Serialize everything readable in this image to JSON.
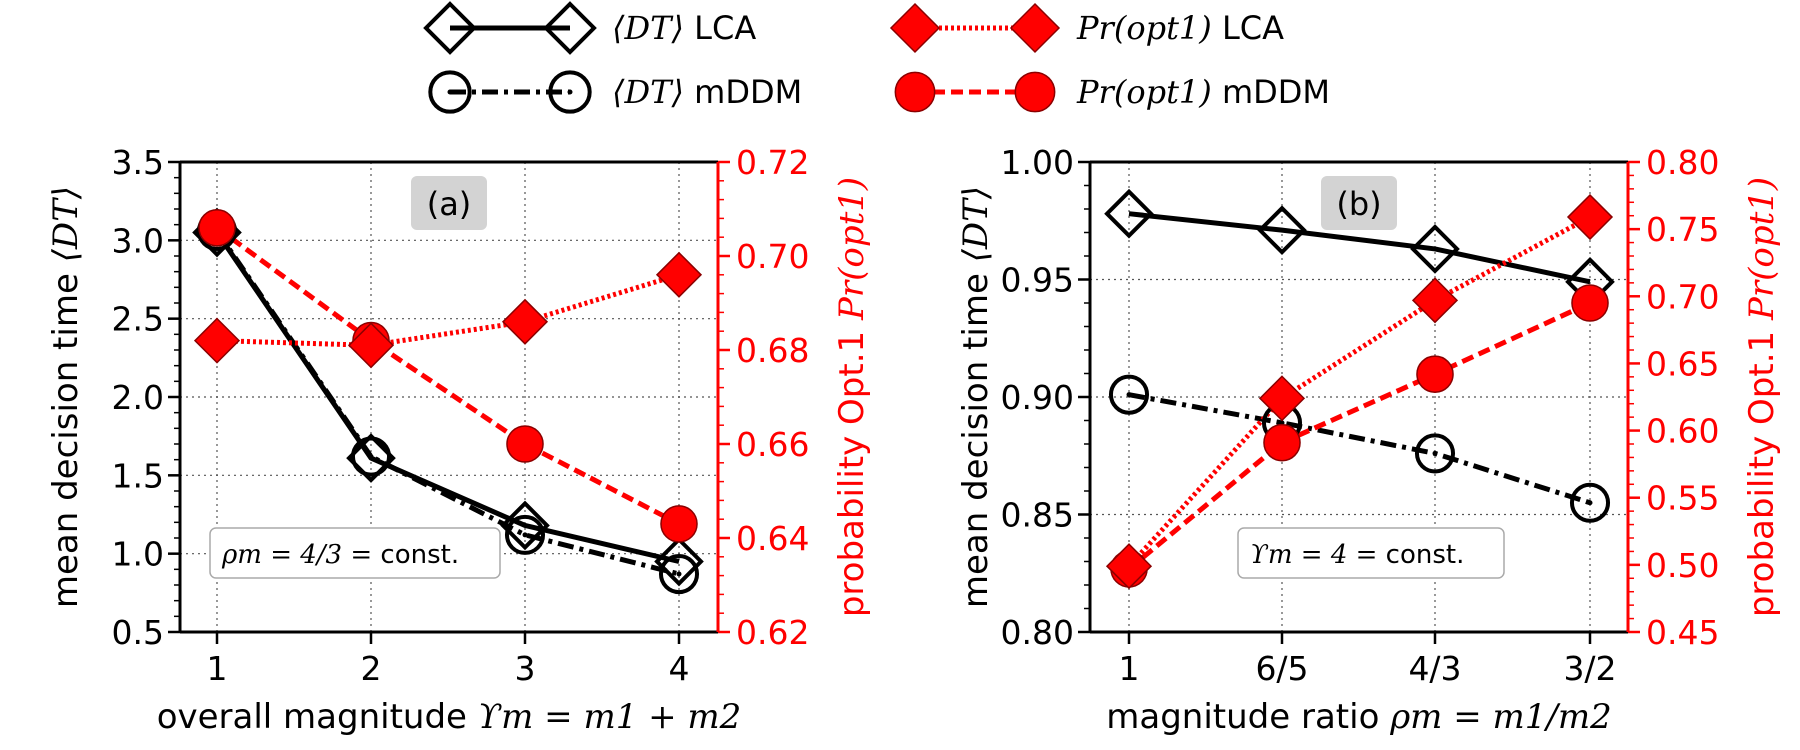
{
  "legend": {
    "items": [
      {
        "math": "⟨DT⟩",
        "model": "LCA",
        "marker": "diamond",
        "color": "#000000",
        "line": "solid"
      },
      {
        "math": "⟨DT⟩",
        "model": "mDDM",
        "marker": "circle-dot",
        "color": "#000000",
        "line": "dashdot"
      },
      {
        "math": "Pr(opt1)",
        "model": "LCA",
        "marker": "diamond",
        "color": "#ff0000",
        "line": "dotted"
      },
      {
        "math": "Pr(opt1)",
        "model": "mDDM",
        "marker": "circle",
        "color": "#ff0000",
        "line": "dashed"
      }
    ]
  },
  "chart_data": [
    {
      "type": "line",
      "panel_label": "(a)",
      "annotation": {
        "math": "ρm = 4/3 =",
        "text": "const."
      },
      "xlabel": {
        "text": "overall magnitude",
        "math": "ϒm = m1 + m2"
      },
      "ylabel_left": {
        "text": "mean decision time",
        "math": "⟨DT⟩"
      },
      "ylabel_right": {
        "text": "probability Opt.1",
        "math": "Pr(opt1)"
      },
      "categories": [
        "1",
        "2",
        "3",
        "4"
      ],
      "ylim_left": [
        0.5,
        3.5
      ],
      "ylim_right": [
        0.62,
        0.72
      ],
      "yticks_left": [
        "0.5",
        "1.0",
        "1.5",
        "2.0",
        "2.5",
        "3.0",
        "3.5"
      ],
      "yticks_right": [
        "0.62",
        "0.64",
        "0.66",
        "0.68",
        "0.70",
        "0.72"
      ],
      "grid": true,
      "series": [
        {
          "legend_index": 0,
          "axis": "left",
          "values": [
            3.05,
            1.61,
            1.18,
            0.95
          ]
        },
        {
          "legend_index": 1,
          "axis": "left",
          "values": [
            3.06,
            1.62,
            1.12,
            0.87
          ]
        },
        {
          "legend_index": 2,
          "axis": "right",
          "values": [
            0.682,
            0.681,
            0.686,
            0.696
          ]
        },
        {
          "legend_index": 3,
          "axis": "right",
          "values": [
            0.706,
            0.682,
            0.66,
            0.643
          ]
        }
      ]
    },
    {
      "type": "line",
      "panel_label": "(b)",
      "annotation": {
        "math": "ϒm = 4 =",
        "text": "const."
      },
      "xlabel": {
        "text": "magnitude ratio",
        "math": "ρm = m1/m2"
      },
      "ylabel_left": {
        "text": "mean decision time",
        "math": "⟨DT⟩"
      },
      "ylabel_right": {
        "text": "probability Opt.1",
        "math": "Pr(opt1)"
      },
      "categories": [
        "1",
        "6/5",
        "4/3",
        "3/2"
      ],
      "ylim_left": [
        0.8,
        1.0
      ],
      "ylim_right": [
        0.45,
        0.8
      ],
      "yticks_left": [
        "0.80",
        "0.85",
        "0.90",
        "0.95",
        "1.00"
      ],
      "yticks_right": [
        "0.45",
        "0.50",
        "0.55",
        "0.60",
        "0.65",
        "0.70",
        "0.75",
        "0.80"
      ],
      "grid": true,
      "series": [
        {
          "legend_index": 0,
          "axis": "left",
          "values": [
            0.978,
            0.971,
            0.963,
            0.949
          ]
        },
        {
          "legend_index": 1,
          "axis": "left",
          "values": [
            0.901,
            0.889,
            0.876,
            0.855
          ]
        },
        {
          "legend_index": 2,
          "axis": "right",
          "values": [
            0.499,
            0.624,
            0.697,
            0.759
          ]
        },
        {
          "legend_index": 3,
          "axis": "right",
          "values": [
            0.497,
            0.591,
            0.642,
            0.695
          ]
        }
      ]
    }
  ]
}
